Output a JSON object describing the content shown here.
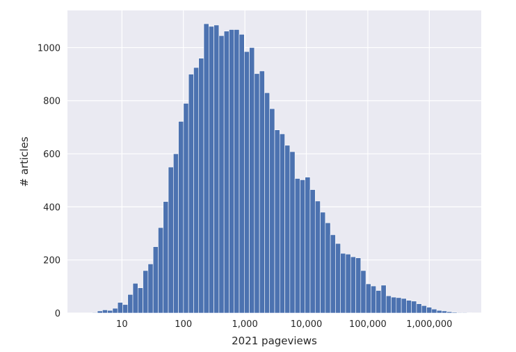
{
  "chart_data": {
    "type": "bar",
    "xlabel": "2021 pageviews",
    "ylabel": "# articles",
    "x_scale": "log",
    "xlim": [
      1.3,
      7000000
    ],
    "ylim": [
      0,
      1140
    ],
    "grid": true,
    "x_ticks": [
      {
        "value": 10,
        "label": "10"
      },
      {
        "value": 100,
        "label": "100"
      },
      {
        "value": 1000,
        "label": "1,000"
      },
      {
        "value": 10000,
        "label": "10,000"
      },
      {
        "value": 100000,
        "label": "100,000"
      },
      {
        "value": 1000000,
        "label": "1,000,000"
      }
    ],
    "y_ticks": [
      {
        "value": 0,
        "label": "0"
      },
      {
        "value": 200,
        "label": "200"
      },
      {
        "value": 400,
        "label": "400"
      },
      {
        "value": 600,
        "label": "600"
      },
      {
        "value": 800,
        "label": "800"
      },
      {
        "value": 1000,
        "label": "1000"
      }
    ],
    "bin_start": 3.3,
    "bin_end": 5000000,
    "counts": [
      2,
      8,
      12,
      10,
      18,
      40,
      32,
      70,
      112,
      95,
      160,
      185,
      250,
      322,
      420,
      550,
      600,
      722,
      790,
      900,
      925,
      960,
      1090,
      1080,
      1085,
      1045,
      1062,
      1068,
      1068,
      1050,
      985,
      1000,
      902,
      912,
      830,
      770,
      690,
      675,
      632,
      608,
      507,
      502,
      512,
      465,
      422,
      380,
      340,
      295,
      262,
      225,
      222,
      212,
      208,
      160,
      110,
      102,
      85,
      105,
      65,
      60,
      58,
      55,
      48,
      45,
      35,
      28,
      22,
      15,
      10,
      8,
      5,
      3,
      2,
      2,
      1
    ]
  },
  "colors": {
    "plot_background": "#eaeaf2",
    "bar_fill": "#4c72b0",
    "bar_edge": "#ffffff",
    "grid": "#ffffff",
    "text": "#262626"
  }
}
